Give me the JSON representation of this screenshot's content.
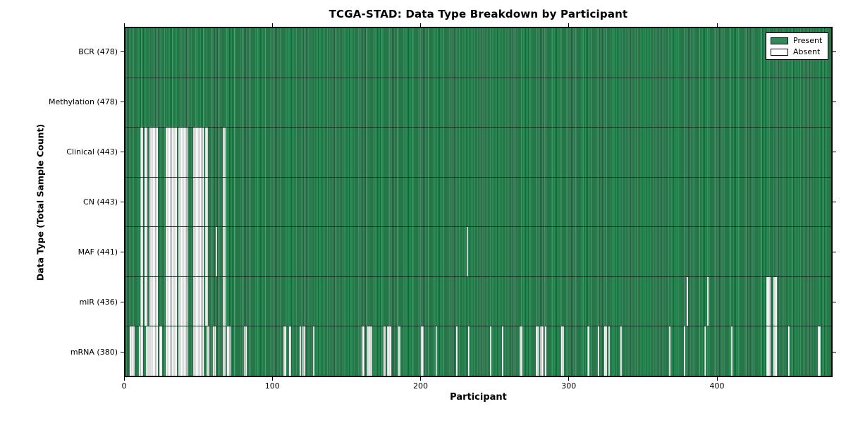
{
  "title": "TCGA-STAD: Data Type Breakdown by Participant",
  "chart_data": {
    "type": "heatmap",
    "title": "TCGA-STAD: Data Type Breakdown by Participant",
    "xlabel": "Participant",
    "ylabel": "Data Type (Total Sample Count)",
    "xlim": [
      0,
      478
    ],
    "x_ticks": [
      0,
      100,
      200,
      300,
      400
    ],
    "total_participants": 478,
    "grid": false,
    "legend_position": "upper right",
    "legend": [
      {
        "label": "Present",
        "color": "#2e8b57"
      },
      {
        "label": "Absent",
        "color": "#ffffff"
      }
    ],
    "colors": {
      "present": "#2e8b57",
      "absent": "#ffffff",
      "edge": "#000000"
    },
    "rows": [
      {
        "name": "BCR",
        "label": "BCR (478)",
        "present_count": 478,
        "absent_ranges": []
      },
      {
        "name": "Methylation",
        "label": "Methylation (478)",
        "present_count": 478,
        "absent_ranges": []
      },
      {
        "name": "Clinical",
        "label": "Clinical (443)",
        "present_count": 443,
        "absent_ranges": [
          [
            10,
            11
          ],
          [
            13,
            14
          ],
          [
            16,
            21
          ],
          [
            27,
            34
          ],
          [
            36,
            41
          ],
          [
            46,
            52
          ],
          [
            54,
            55
          ],
          [
            66,
            67
          ]
        ]
      },
      {
        "name": "CN",
        "label": "CN (443)",
        "present_count": 443,
        "absent_ranges": [
          [
            10,
            11
          ],
          [
            13,
            14
          ],
          [
            16,
            21
          ],
          [
            27,
            34
          ],
          [
            36,
            41
          ],
          [
            46,
            52
          ],
          [
            54,
            55
          ],
          [
            66,
            67
          ]
        ]
      },
      {
        "name": "MAF",
        "label": "MAF (441)",
        "present_count": 441,
        "absent_ranges": [
          [
            10,
            11
          ],
          [
            13,
            14
          ],
          [
            16,
            21
          ],
          [
            27,
            34
          ],
          [
            36,
            41
          ],
          [
            46,
            52
          ],
          [
            54,
            55
          ],
          [
            61,
            61
          ],
          [
            66,
            67
          ],
          [
            231,
            231
          ]
        ]
      },
      {
        "name": "miR",
        "label": "miR (436)",
        "present_count": 436,
        "absent_ranges": [
          [
            10,
            11
          ],
          [
            13,
            14
          ],
          [
            16,
            21
          ],
          [
            27,
            34
          ],
          [
            36,
            41
          ],
          [
            46,
            52
          ],
          [
            54,
            55
          ],
          [
            66,
            67
          ],
          [
            380,
            380
          ],
          [
            394,
            394
          ],
          [
            434,
            436
          ],
          [
            439,
            440
          ]
        ]
      },
      {
        "name": "mRNA",
        "label": "mRNA (380)",
        "present_count": 380,
        "absent_ranges": [
          [
            3,
            5
          ],
          [
            9,
            11
          ],
          [
            14,
            21
          ],
          [
            23,
            24
          ],
          [
            27,
            34
          ],
          [
            36,
            41
          ],
          [
            46,
            52
          ],
          [
            55,
            56
          ],
          [
            59,
            60
          ],
          [
            66,
            67
          ],
          [
            69,
            70
          ],
          [
            80,
            81
          ],
          [
            107,
            108
          ],
          [
            111,
            111
          ],
          [
            118,
            118
          ],
          [
            120,
            121
          ],
          [
            127,
            127
          ],
          [
            160,
            161
          ],
          [
            164,
            166
          ],
          [
            175,
            175
          ],
          [
            177,
            178
          ],
          [
            179,
            179
          ],
          [
            185,
            185
          ],
          [
            200,
            201
          ],
          [
            210,
            210
          ],
          [
            224,
            224
          ],
          [
            232,
            232
          ],
          [
            247,
            247
          ],
          [
            255,
            255
          ],
          [
            267,
            268
          ],
          [
            278,
            279
          ],
          [
            281,
            282
          ],
          [
            284,
            284
          ],
          [
            295,
            296
          ],
          [
            313,
            313
          ],
          [
            320,
            320
          ],
          [
            324,
            325
          ],
          [
            327,
            327
          ],
          [
            335,
            335
          ],
          [
            368,
            368
          ],
          [
            378,
            378
          ],
          [
            392,
            392
          ],
          [
            410,
            410
          ],
          [
            434,
            436
          ],
          [
            439,
            440
          ],
          [
            449,
            449
          ],
          [
            469,
            470
          ]
        ]
      }
    ]
  }
}
